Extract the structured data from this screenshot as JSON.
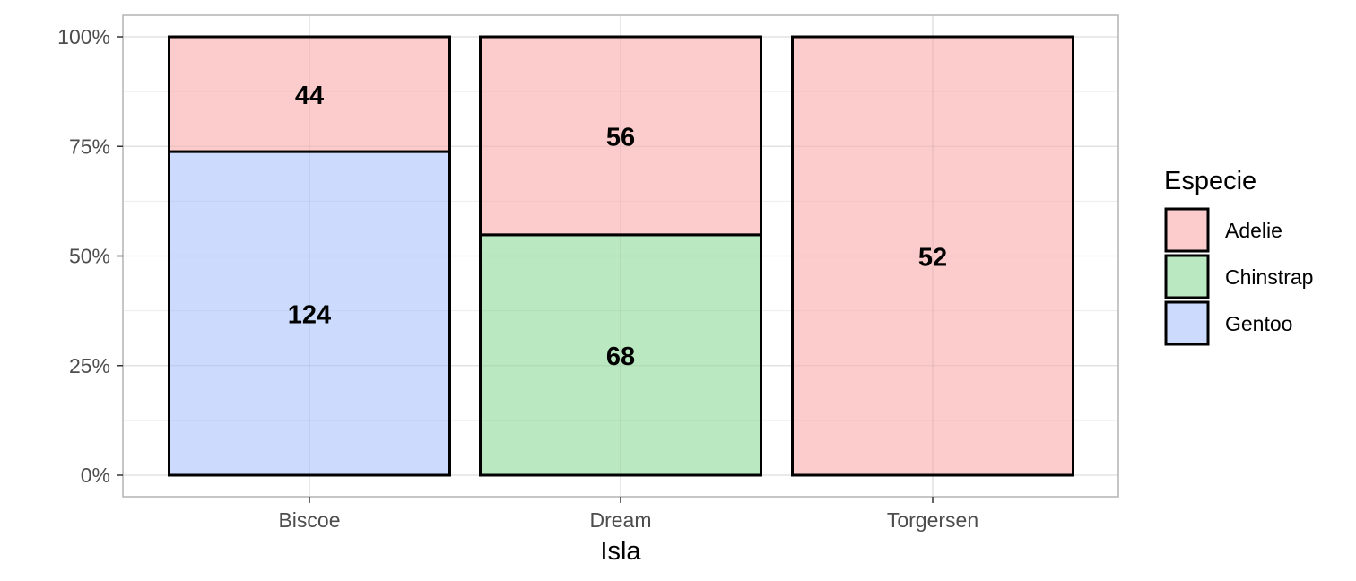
{
  "chart_data": {
    "type": "bar",
    "stacked": true,
    "normalized": true,
    "categories": [
      "Biscoe",
      "Dream",
      "Torgersen"
    ],
    "series": [
      {
        "name": "Adelie",
        "values": [
          44,
          56,
          52
        ],
        "color": "#fccccc"
      },
      {
        "name": "Chinstrap",
        "values": [
          0,
          68,
          0
        ],
        "color": "#bae8c1"
      },
      {
        "name": "Gentoo",
        "values": [
          124,
          0,
          0
        ],
        "color": "#cbdafd"
      }
    ],
    "stack_order_bottom_to_top": [
      "Gentoo",
      "Chinstrap",
      "Adelie"
    ],
    "xlabel": "Isla",
    "ylabel": "",
    "ylim": [
      0,
      1
    ],
    "y_ticks": [
      0,
      0.25,
      0.5,
      0.75,
      1
    ],
    "y_tick_labels": [
      "0%",
      "25%",
      "50%",
      "75%",
      "100%"
    ],
    "grid": true,
    "legend": {
      "title": "Especie",
      "position": "right",
      "entries": [
        "Adelie",
        "Chinstrap",
        "Gentoo"
      ]
    },
    "colors": {
      "grid_major": "#ebebeb",
      "grid_minor": "#f5f5f5",
      "panel_border": "#b3b3b3",
      "bar_outline": "#000000"
    }
  }
}
